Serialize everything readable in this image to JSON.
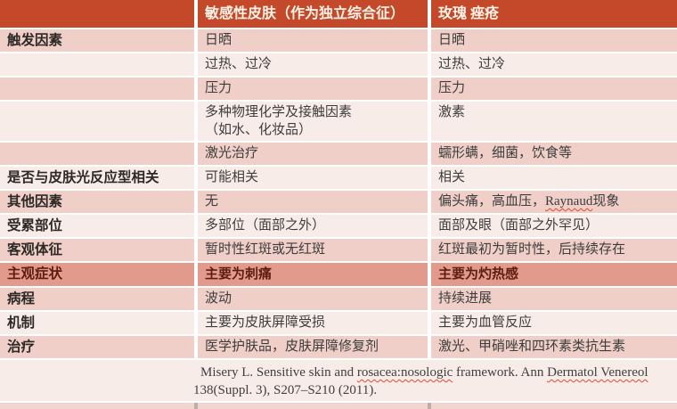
{
  "header": {
    "col1": "",
    "col2": "敏感性皮肤（作为独立综合征）",
    "col3": "玫瑰 痤疮"
  },
  "rows": [
    {
      "label": "触发因素",
      "col2": "日晒",
      "col3": "日晒"
    },
    {
      "label": "",
      "col2": "过热、过冷",
      "col3": "过热、过冷"
    },
    {
      "label": "",
      "col2": "压力",
      "col3": "压力"
    },
    {
      "label": "",
      "col2": "多种物理化学及接触因素\n（如水、化妆品）",
      "col3": "激素"
    },
    {
      "label": "",
      "col2": "激光治疗",
      "col3": "蠕形螨，细菌，饮食等"
    },
    {
      "label": "是否与皮肤光反应型相关",
      "col2": "可能相关",
      "col3": "相关"
    },
    {
      "label": "其他因素",
      "col2": "无",
      "col3_segments": [
        {
          "text": "偏头痛，高血压，"
        },
        {
          "text": "Raynaud",
          "wavy": true
        },
        {
          "text": "现象"
        }
      ]
    },
    {
      "label": "受累部位",
      "col2": "多部位（面部之外）",
      "col3": "面部及眼（面部之外罕见）"
    },
    {
      "label": "客观体征",
      "col2": "暂时性红斑或无红斑",
      "col3": "红斑最初为暂时性，后持续存在"
    },
    {
      "label": "主观症状",
      "col2": "主要为刺痛",
      "col3": "主要为灼热感"
    },
    {
      "label": "病程",
      "col2": "波动",
      "col3": "持续进展"
    },
    {
      "label": "机制",
      "col2": "主要为皮肤屏障受损",
      "col3": "主要为血管反应"
    },
    {
      "label": "治疗",
      "col2": "医学护肤品，皮肤屏障修复剂",
      "col3": "激光、甲硝唑和四环素类抗生素"
    }
  ],
  "citation": {
    "segments": [
      {
        "text": "Misery L. Sensitive skin and "
      },
      {
        "text": "rosacea:nosologic",
        "wavy": true
      },
      {
        "text": " framework. Ann "
      },
      {
        "text": "Dermatol Venereol",
        "wavy": true
      },
      {
        "text": "\n138(Suppl. 3), S207–S210 (2011)."
      }
    ]
  },
  "colors": {
    "header_bg": "#c4492b",
    "header_text": "#fcf3e6",
    "band_dark": "#efcfc7",
    "band_light": "#f8ece8",
    "highlight_bg": "#e29a8c",
    "highlight_text": "#5e1d10",
    "body_text": "#3d3d3d",
    "squiggle": "#de4b31"
  }
}
